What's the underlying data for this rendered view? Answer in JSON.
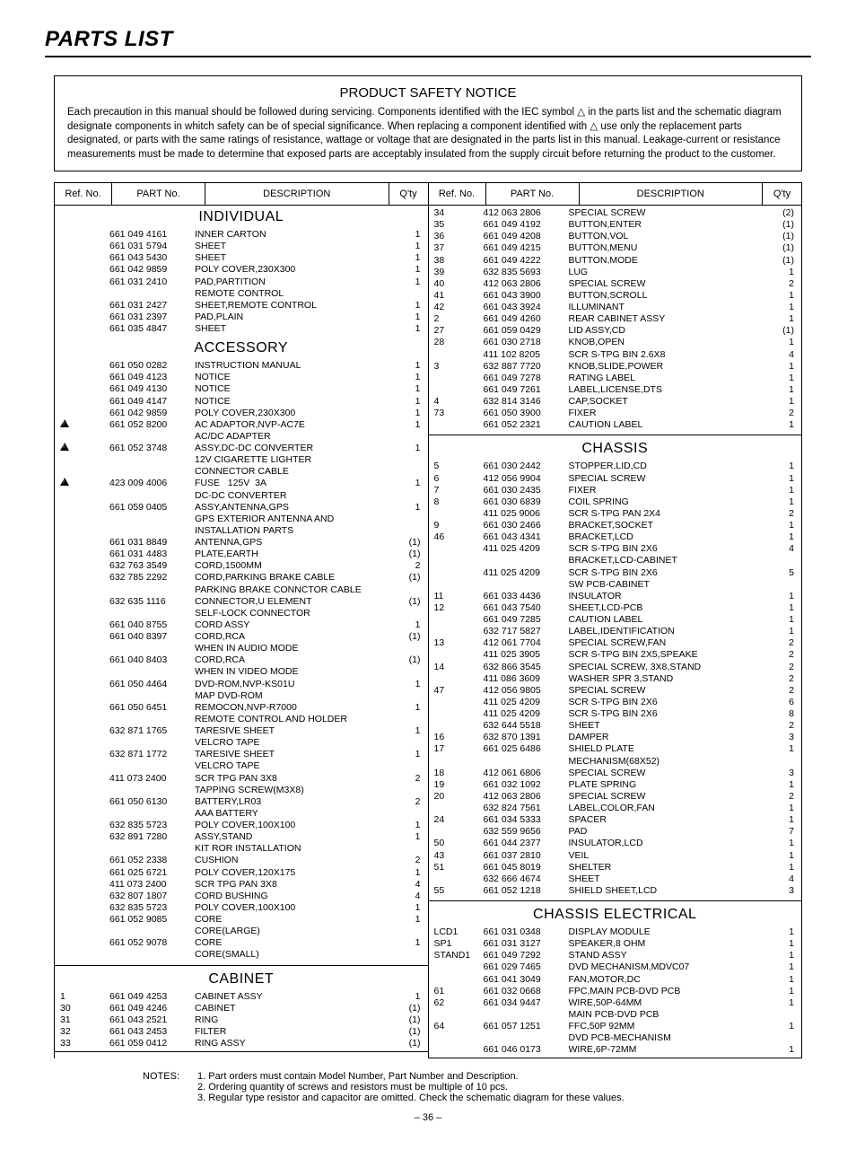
{
  "title": "PARTS LIST",
  "safety": {
    "heading": "PRODUCT SAFETY NOTICE",
    "body": "Each precaution in this manual should be followed during servicing. Components identified with the IEC symbol △ in the parts list and the schematic diagram designate components in whitch safety can be of special significance. When replacing a component identified with △ use only the replacement parts designated, or parts with the same ratings of resistance, wattage or voltage that are designated in the parts list in this manual. Leakage-current or resistance measurements must be made to determine that exposed parts are acceptably insulated from the supply circuit before returning the product to the customer."
  },
  "headers": {
    "ref": "Ref. No.",
    "part": "PART No.",
    "desc": "DESCRIPTION",
    "qty": "Q'ty"
  },
  "sections": {
    "individual": "INDIVIDUAL",
    "accessory": "ACCESSORY",
    "cabinet": "CABINET",
    "chassis": "CHASSIS",
    "chassis_elec": "CHASSIS ELECTRICAL"
  },
  "left": {
    "individual": [
      {
        "ref": "",
        "part": "661 049 4161",
        "desc": "INNER CARTON",
        "qty": "1"
      },
      {
        "ref": "",
        "part": "661 031 5794",
        "desc": "SHEET",
        "qty": "1"
      },
      {
        "ref": "",
        "part": "661 043 5430",
        "desc": "SHEET",
        "qty": "1"
      },
      {
        "ref": "",
        "part": "661 042 9859",
        "desc": "POLY COVER,230X300",
        "qty": "1"
      },
      {
        "ref": "",
        "part": "661 031 2410",
        "desc": "PAD,PARTITION",
        "qty": "1"
      },
      {
        "ref": "",
        "part": "",
        "desc": "REMOTE CONTROL",
        "qty": ""
      },
      {
        "ref": "",
        "part": "661 031 2427",
        "desc": "SHEET,REMOTE CONTROL",
        "qty": "1"
      },
      {
        "ref": "",
        "part": "661 031 2397",
        "desc": "PAD,PLAIN",
        "qty": "1"
      },
      {
        "ref": "",
        "part": "661 035 4847",
        "desc": "SHEET",
        "qty": "1"
      }
    ],
    "accessory": [
      {
        "ref": "",
        "part": "661 050 0282",
        "desc": "INSTRUCTION MANUAL",
        "qty": "1"
      },
      {
        "ref": "",
        "part": "661 049 4123",
        "desc": "NOTICE",
        "qty": "1"
      },
      {
        "ref": "",
        "part": "661 049 4130",
        "desc": "NOTICE",
        "qty": "1"
      },
      {
        "ref": "",
        "part": "661 049 4147",
        "desc": "NOTICE",
        "qty": "1"
      },
      {
        "ref": "",
        "part": "661 042 9859",
        "desc": "POLY COVER,230X300",
        "qty": "1"
      },
      {
        "ref": "",
        "tri": true,
        "part": "661 052 8200",
        "desc": "AC ADAPTOR,NVP-AC7E",
        "qty": "1"
      },
      {
        "ref": "",
        "part": "",
        "desc": "AC/DC ADAPTER",
        "qty": ""
      },
      {
        "ref": "",
        "tri": true,
        "part": "661 052 3748",
        "desc": "ASSY,DC-DC CONVERTER",
        "qty": "1"
      },
      {
        "ref": "",
        "part": "",
        "desc": "12V CIGARETTE LIGHTER",
        "qty": ""
      },
      {
        "ref": "",
        "part": "",
        "desc": "CONNECTOR CABLE",
        "qty": ""
      },
      {
        "ref": "",
        "tri": true,
        "part": "423 009 4006",
        "desc": "FUSE   125V  3A",
        "qty": "1"
      },
      {
        "ref": "",
        "part": "",
        "desc": "DC-DC CONVERTER",
        "qty": ""
      },
      {
        "ref": "",
        "part": "661 059 0405",
        "desc": "ASSY,ANTENNA,GPS",
        "qty": "1"
      },
      {
        "ref": "",
        "part": "",
        "desc": "GPS EXTERIOR ANTENNA AND",
        "qty": ""
      },
      {
        "ref": "",
        "part": "",
        "desc": "INSTALLATION PARTS",
        "qty": ""
      },
      {
        "ref": "",
        "part": "661 031 8849",
        "desc": "ANTENNA,GPS",
        "qty": "(1)"
      },
      {
        "ref": "",
        "part": "661 031 4483",
        "desc": "PLATE,EARTH",
        "qty": "(1)"
      },
      {
        "ref": "",
        "part": "632 763 3549",
        "desc": "CORD,1500MM",
        "qty": "2"
      },
      {
        "ref": "",
        "part": "632 785 2292",
        "desc": "CORD,PARKING BRAKE CABLE",
        "qty": "(1)"
      },
      {
        "ref": "",
        "part": "",
        "desc": "PARKING BRAKE CONNCTOR CABLE",
        "qty": ""
      },
      {
        "ref": "",
        "part": "632 635 1116",
        "desc": "CONNECTOR,U ELEMENT",
        "qty": "(1)"
      },
      {
        "ref": "",
        "part": "",
        "desc": "SELF-LOCK CONNECTOR",
        "qty": ""
      },
      {
        "ref": "",
        "part": "661 040 8755",
        "desc": "CORD ASSY",
        "qty": "1"
      },
      {
        "ref": "",
        "part": "661 040 8397",
        "desc": "CORD,RCA",
        "qty": "(1)"
      },
      {
        "ref": "",
        "part": "",
        "desc": "WHEN IN AUDIO MODE",
        "qty": ""
      },
      {
        "ref": "",
        "part": "661 040 8403",
        "desc": "CORD,RCA",
        "qty": "(1)"
      },
      {
        "ref": "",
        "part": "",
        "desc": "WHEN IN VIDEO MODE",
        "qty": ""
      },
      {
        "ref": "",
        "part": "661 050 4464",
        "desc": "DVD-ROM,NVP-KS01U",
        "qty": "1"
      },
      {
        "ref": "",
        "part": "",
        "desc": "MAP DVD-ROM",
        "qty": ""
      },
      {
        "ref": "",
        "part": "661 050 6451",
        "desc": "REMOCON,NVP-R7000",
        "qty": "1"
      },
      {
        "ref": "",
        "part": "",
        "desc": "REMOTE CONTROL AND HOLDER",
        "qty": ""
      },
      {
        "ref": "",
        "part": "632 871 1765",
        "desc": "TARESIVE SHEET",
        "qty": "1"
      },
      {
        "ref": "",
        "part": "",
        "desc": "VELCRO TAPE",
        "qty": ""
      },
      {
        "ref": "",
        "part": "632 871 1772",
        "desc": "TARESIVE SHEET",
        "qty": "1"
      },
      {
        "ref": "",
        "part": "",
        "desc": "VELCRO TAPE",
        "qty": ""
      },
      {
        "ref": "",
        "part": "411 073 2400",
        "desc": "SCR TPG PAN 3X8",
        "qty": "2"
      },
      {
        "ref": "",
        "part": "",
        "desc": "TAPPING SCREW(M3X8)",
        "qty": ""
      },
      {
        "ref": "",
        "part": "661 050 6130",
        "desc": "BATTERY,LR03",
        "qty": "2"
      },
      {
        "ref": "",
        "part": "",
        "desc": "AAA BATTERY",
        "qty": ""
      },
      {
        "ref": "",
        "part": "632 835 5723",
        "desc": "POLY COVER,100X100",
        "qty": "1"
      },
      {
        "ref": "",
        "part": "632 891 7280",
        "desc": "ASSY,STAND",
        "qty": "1"
      },
      {
        "ref": "",
        "part": "",
        "desc": "KIT ROR INSTALLATION",
        "qty": ""
      },
      {
        "ref": "",
        "part": "661 052 2338",
        "desc": "CUSHION",
        "qty": "2"
      },
      {
        "ref": "",
        "part": "661 025 6721",
        "desc": "POLY COVER,120X175",
        "qty": "1"
      },
      {
        "ref": "",
        "part": "411 073 2400",
        "desc": "SCR TPG PAN 3X8",
        "qty": "4"
      },
      {
        "ref": "",
        "part": "632 807 1807",
        "desc": "CORD BUSHING",
        "qty": "4"
      },
      {
        "ref": "",
        "part": "632 835 5723",
        "desc": "POLY COVER,100X100",
        "qty": "1"
      },
      {
        "ref": "",
        "part": "661 052 9085",
        "desc": "CORE",
        "qty": "1"
      },
      {
        "ref": "",
        "part": "",
        "desc": "CORE(LARGE)",
        "qty": ""
      },
      {
        "ref": "",
        "part": "661 052 9078",
        "desc": "CORE",
        "qty": "1"
      },
      {
        "ref": "",
        "part": "",
        "desc": "CORE(SMALL)",
        "qty": ""
      }
    ],
    "cabinet": [
      {
        "ref": "1",
        "part": "661 049 4253",
        "desc": "CABINET ASSY",
        "qty": "1"
      },
      {
        "ref": "30",
        "part": "661 049 4246",
        "desc": "CABINET",
        "qty": "(1)"
      },
      {
        "ref": "31",
        "part": "661 043 2521",
        "desc": "RING",
        "qty": "(1)"
      },
      {
        "ref": "32",
        "part": "661 043 2453",
        "desc": "FILTER",
        "qty": "(1)"
      },
      {
        "ref": "33",
        "part": "661 059 0412",
        "desc": "RING ASSY",
        "qty": "(1)"
      }
    ]
  },
  "right": {
    "top": [
      {
        "ref": "34",
        "part": "412 063 2806",
        "desc": "SPECIAL SCREW",
        "qty": "(2)"
      },
      {
        "ref": "35",
        "part": "661 049 4192",
        "desc": "BUTTON,ENTER",
        "qty": "(1)"
      },
      {
        "ref": "36",
        "part": "661 049 4208",
        "desc": "BUTTON,VOL",
        "qty": "(1)"
      },
      {
        "ref": "37",
        "part": "661 049 4215",
        "desc": "BUTTON,MENU",
        "qty": "(1)"
      },
      {
        "ref": "38",
        "part": "661 049 4222",
        "desc": "BUTTON,MODE",
        "qty": "(1)"
      },
      {
        "ref": "39",
        "part": "632 835 5693",
        "desc": "LUG",
        "qty": "1"
      },
      {
        "ref": "40",
        "part": "412 063 2806",
        "desc": "SPECIAL SCREW",
        "qty": "2"
      },
      {
        "ref": "41",
        "part": "661 043 3900",
        "desc": "BUTTON,SCROLL",
        "qty": "1"
      },
      {
        "ref": "42",
        "part": "661 043 3924",
        "desc": "ILLUMINANT",
        "qty": "1"
      },
      {
        "ref": "2",
        "part": "661 049 4260",
        "desc": "REAR CABINET ASSY",
        "qty": "1"
      },
      {
        "ref": "27",
        "part": "661 059 0429",
        "desc": "LID ASSY,CD",
        "qty": "(1)"
      },
      {
        "ref": "28",
        "part": "661 030 2718",
        "desc": "KNOB,OPEN",
        "qty": "1"
      },
      {
        "ref": "",
        "part": "411 102 8205",
        "desc": "SCR S-TPG BIN 2.6X8",
        "qty": "4"
      },
      {
        "ref": "3",
        "part": "632 887 7720",
        "desc": "KNOB,SLIDE,POWER",
        "qty": "1"
      },
      {
        "ref": "",
        "part": "661 049 7278",
        "desc": "RATING LABEL",
        "qty": "1"
      },
      {
        "ref": "",
        "part": "661 049 7261",
        "desc": "LABEL,LICENSE,DTS",
        "qty": "1"
      },
      {
        "ref": "4",
        "part": "632 814 3146",
        "desc": "CAP,SOCKET",
        "qty": "1"
      },
      {
        "ref": "73",
        "part": "661 050 3900",
        "desc": "FIXER",
        "qty": "2"
      },
      {
        "ref": "",
        "part": "661 052 2321",
        "desc": "CAUTION LABEL",
        "qty": "1"
      }
    ],
    "chassis": [
      {
        "ref": "5",
        "part": "661 030 2442",
        "desc": "STOPPER,LID,CD",
        "qty": "1"
      },
      {
        "ref": "6",
        "part": "412 056 9904",
        "desc": "SPECIAL SCREW",
        "qty": "1"
      },
      {
        "ref": "7",
        "part": "661 030 2435",
        "desc": "FIXER",
        "qty": "1"
      },
      {
        "ref": "8",
        "part": "661 030 6839",
        "desc": "COIL SPRING",
        "qty": "1"
      },
      {
        "ref": "",
        "part": "411 025 9006",
        "desc": "SCR S-TPG PAN 2X4",
        "qty": "2"
      },
      {
        "ref": "9",
        "part": "661 030 2466",
        "desc": "BRACKET,SOCKET",
        "qty": "1"
      },
      {
        "ref": "46",
        "part": "661 043 4341",
        "desc": "BRACKET,LCD",
        "qty": "1"
      },
      {
        "ref": "",
        "part": "411 025 4209",
        "desc": "SCR S-TPG BIN 2X6",
        "qty": "4"
      },
      {
        "ref": "",
        "part": "",
        "desc": "BRACKET,LCD-CABINET",
        "qty": ""
      },
      {
        "ref": "",
        "part": "411 025 4209",
        "desc": "SCR S-TPG BIN 2X6",
        "qty": "5"
      },
      {
        "ref": "",
        "part": "",
        "desc": "SW PCB-CABINET",
        "qty": ""
      },
      {
        "ref": "11",
        "part": "661 033 4436",
        "desc": "INSULATOR",
        "qty": "1"
      },
      {
        "ref": "12",
        "part": "661 043 7540",
        "desc": "SHEET,LCD-PCB",
        "qty": "1"
      },
      {
        "ref": "",
        "part": "661 049 7285",
        "desc": "CAUTION LABEL",
        "qty": "1"
      },
      {
        "ref": "",
        "part": "632 717 5827",
        "desc": "LABEL,IDENTIFICATION",
        "qty": "1"
      },
      {
        "ref": "13",
        "part": "412 061 7704",
        "desc": "SPECIAL SCREW,FAN",
        "qty": "2"
      },
      {
        "ref": "",
        "part": "411 025 3905",
        "desc": "SCR S-TPG BIN 2X5,SPEAKE",
        "qty": "2"
      },
      {
        "ref": "14",
        "part": "632 866 3545",
        "desc": "SPECIAL SCREW, 3X8,STAND",
        "qty": "2"
      },
      {
        "ref": "",
        "part": "411 086 3609",
        "desc": "WASHER SPR 3,STAND",
        "qty": "2"
      },
      {
        "ref": "47",
        "part": "412 056 9805",
        "desc": "SPECIAL SCREW",
        "qty": "2"
      },
      {
        "ref": "",
        "part": "411 025 4209",
        "desc": "SCR S-TPG BIN 2X6",
        "qty": "6"
      },
      {
        "ref": "",
        "part": "411 025 4209",
        "desc": "SCR S-TPG BIN 2X6",
        "qty": "8"
      },
      {
        "ref": "",
        "part": "632 644 5518",
        "desc": "SHEET",
        "qty": "2"
      },
      {
        "ref": "16",
        "part": "632 870 1391",
        "desc": "DAMPER",
        "qty": "3"
      },
      {
        "ref": "17",
        "part": "661 025 6486",
        "desc": "SHIELD PLATE",
        "qty": "1"
      },
      {
        "ref": "",
        "part": "",
        "desc": "MECHANISM(68X52)",
        "qty": ""
      },
      {
        "ref": "18",
        "part": "412 061 6806",
        "desc": "SPECIAL SCREW",
        "qty": "3"
      },
      {
        "ref": "19",
        "part": "661 032 1092",
        "desc": "PLATE SPRING",
        "qty": "1"
      },
      {
        "ref": "20",
        "part": "412 063 2806",
        "desc": "SPECIAL SCREW",
        "qty": "2"
      },
      {
        "ref": "",
        "part": "632 824 7561",
        "desc": "LABEL,COLOR,FAN",
        "qty": "1"
      },
      {
        "ref": "24",
        "part": "661 034 5333",
        "desc": "SPACER",
        "qty": "1"
      },
      {
        "ref": "",
        "part": "632 559 9656",
        "desc": "PAD",
        "qty": "7"
      },
      {
        "ref": "50",
        "part": "661 044 2377",
        "desc": "INSULATOR,LCD",
        "qty": "1"
      },
      {
        "ref": "43",
        "part": "661 037 2810",
        "desc": "VEIL",
        "qty": "1"
      },
      {
        "ref": "51",
        "part": "661 045 8019",
        "desc": "SHELTER",
        "qty": "1"
      },
      {
        "ref": "",
        "part": "632 666 4674",
        "desc": "SHEET",
        "qty": "4"
      },
      {
        "ref": "55",
        "part": "661 052 1218",
        "desc": "SHIELD SHEET,LCD",
        "qty": "3"
      }
    ],
    "chassis_elec": [
      {
        "ref": "LCD1",
        "part": "661 031 0348",
        "desc": "DISPLAY MODULE",
        "qty": "1"
      },
      {
        "ref": "SP1",
        "part": "661 031 3127",
        "desc": "SPEAKER,8 OHM",
        "qty": "1"
      },
      {
        "ref": "STAND1",
        "part": "661 049 7292",
        "desc": "STAND ASSY",
        "qty": "1"
      },
      {
        "ref": "",
        "part": "661 029 7465",
        "desc": "DVD MECHANISM,MDVC07",
        "qty": "1"
      },
      {
        "ref": "",
        "part": "661 041 3049",
        "desc": "FAN,MOTOR,DC",
        "qty": "1"
      },
      {
        "ref": "61",
        "part": "661 032 0668",
        "desc": "FPC,MAIN PCB-DVD PCB",
        "qty": "1"
      },
      {
        "ref": "62",
        "part": "661 034 9447",
        "desc": "WIRE,50P-64MM",
        "qty": "1"
      },
      {
        "ref": "",
        "part": "",
        "desc": "MAIN PCB-DVD PCB",
        "qty": ""
      },
      {
        "ref": "64",
        "part": "661 057 1251",
        "desc": "FFC,50P 92MM",
        "qty": "1"
      },
      {
        "ref": "",
        "part": "",
        "desc": "DVD PCB-MECHANISM",
        "qty": ""
      },
      {
        "ref": "",
        "part": "661 046 0173",
        "desc": "WIRE,6P-72MM",
        "qty": "1"
      }
    ]
  },
  "notes": {
    "label": "NOTES:",
    "lines": [
      "1. Part orders must contain Model Number, Part Number and Description.",
      "2. Ordering quantity of screws and resistors must be multiple of 10 pcs.",
      "3. Regular type resistor and capacitor are omitted. Check the schematic diagram for these values."
    ]
  },
  "page_number": "– 36 –"
}
